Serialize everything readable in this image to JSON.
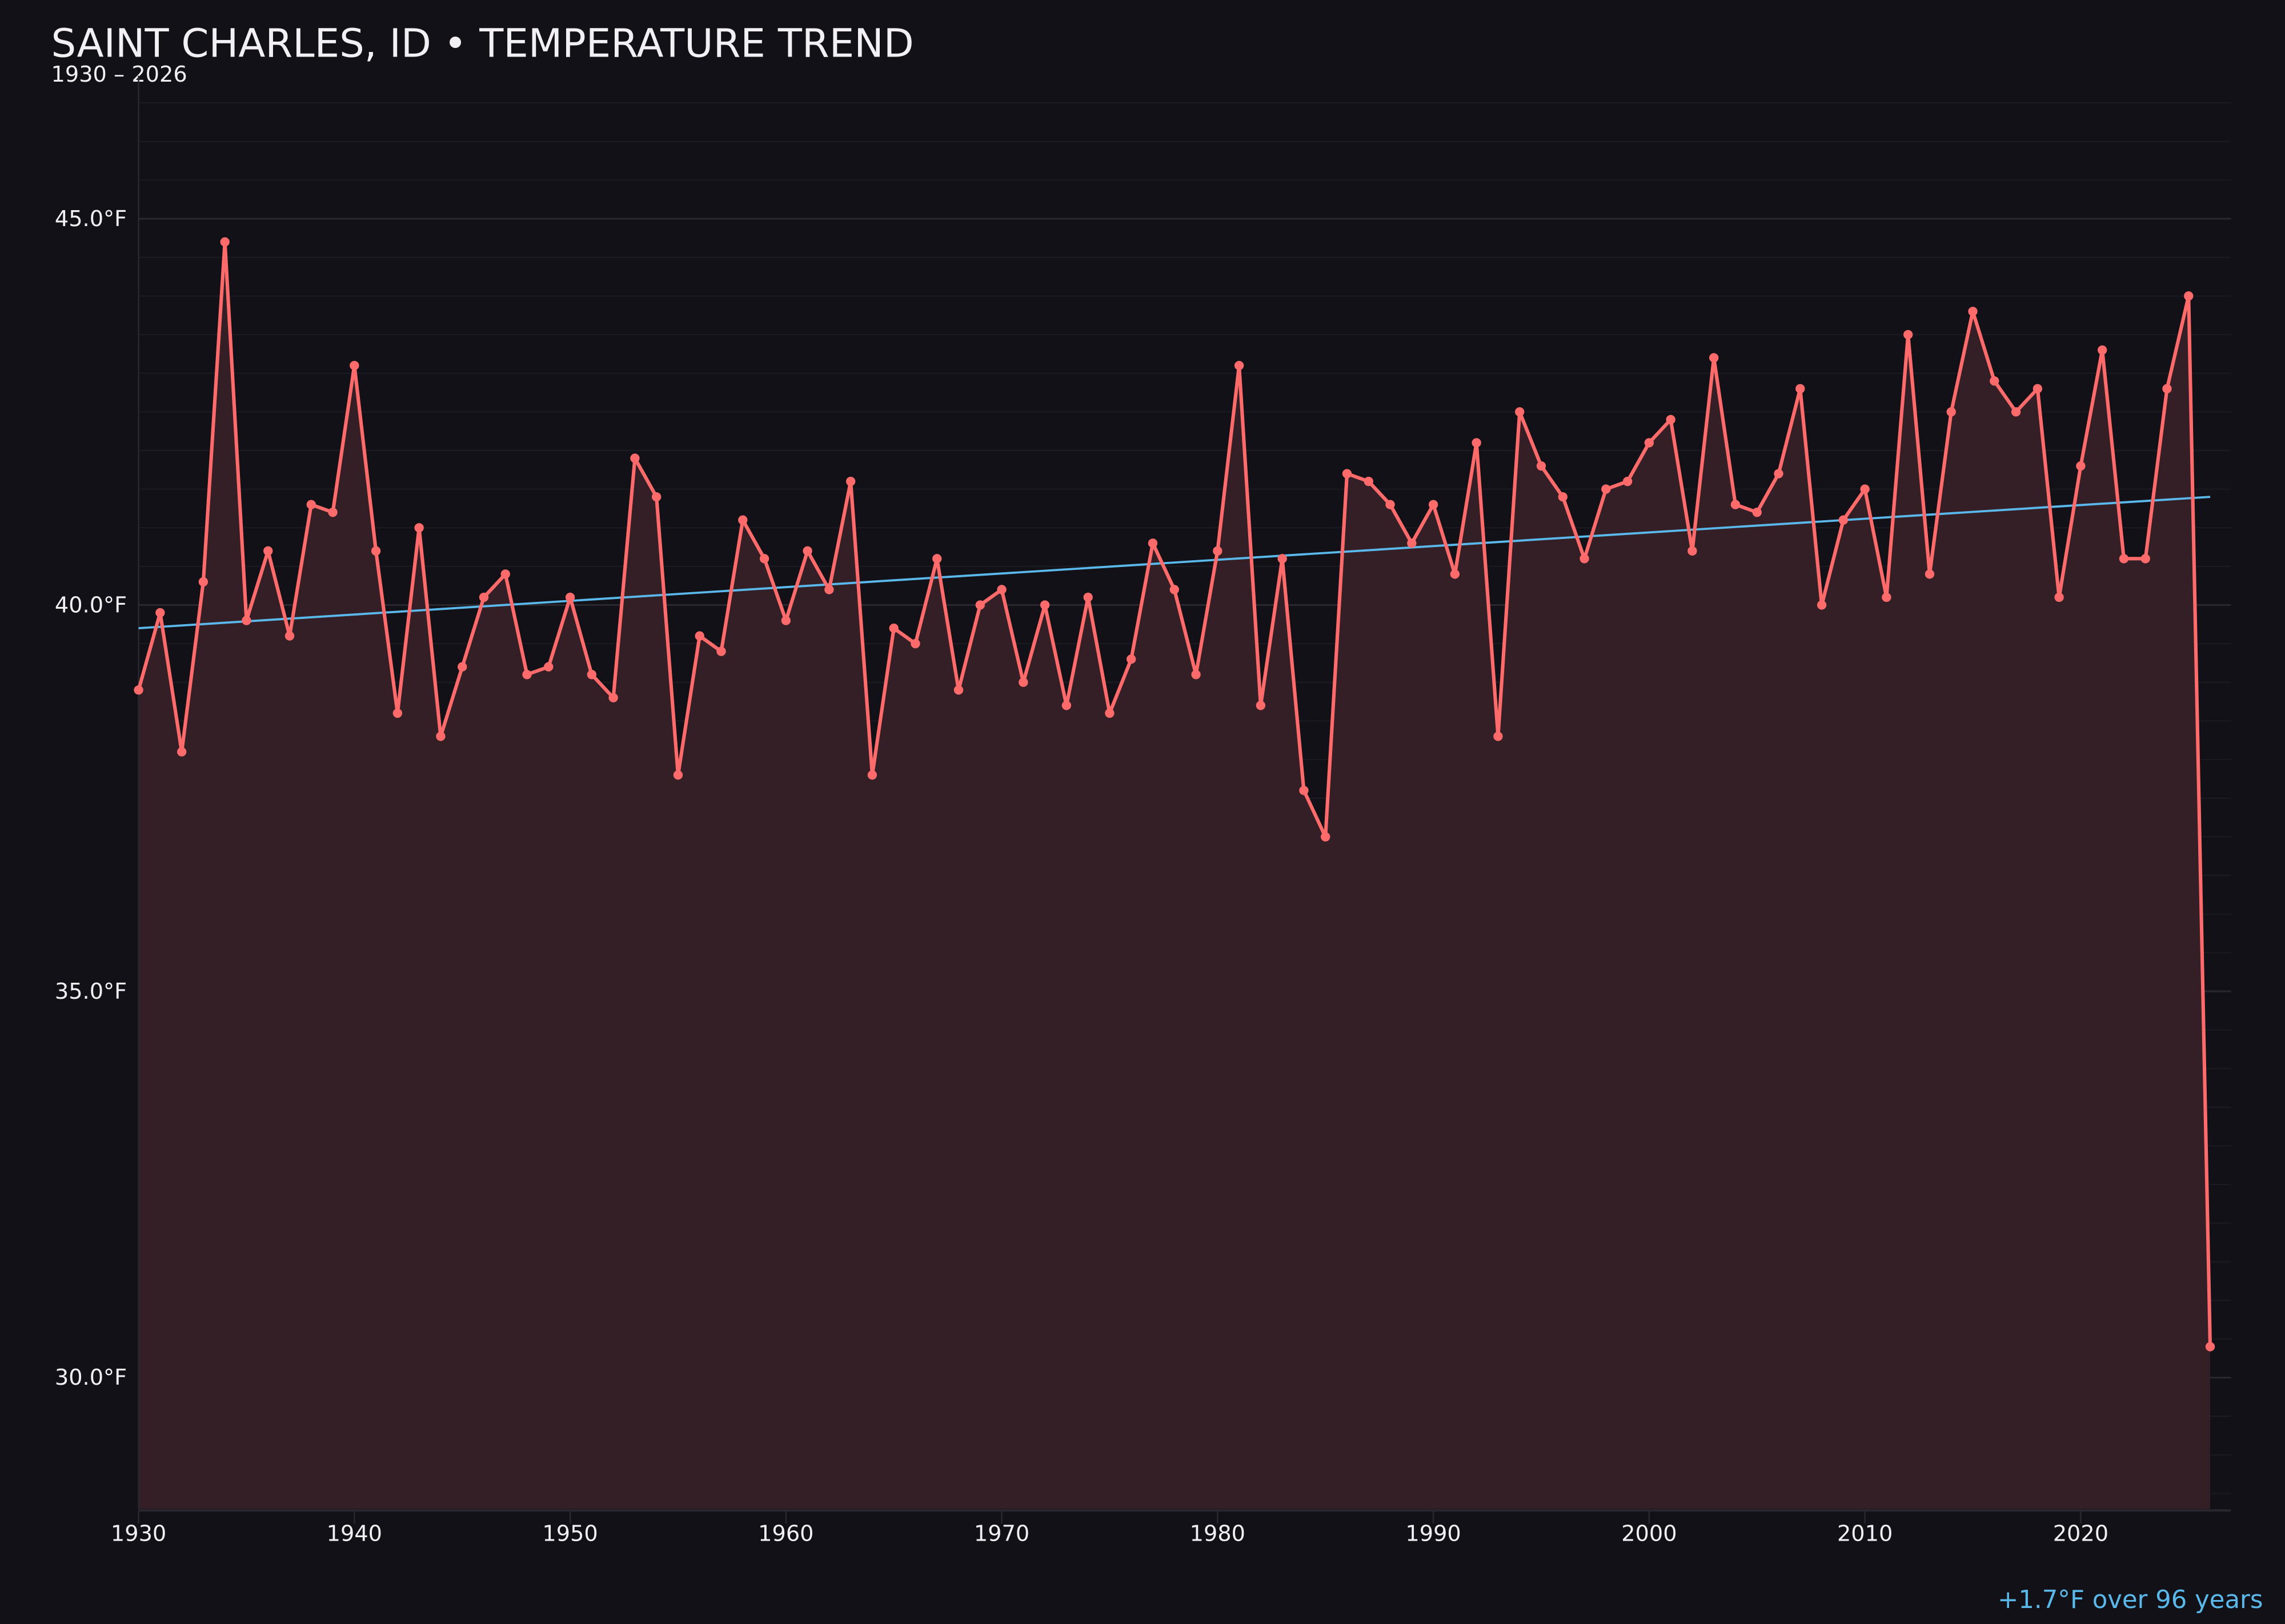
{
  "chart_data": {
    "type": "line",
    "title": "SAINT CHARLES, ID • TEMPERATURE TREND",
    "subtitle": "1930 – 2026",
    "annotation": "+1.7°F over 96 years",
    "xlabel": "",
    "ylabel": "",
    "xlim": [
      1930,
      2027
    ],
    "ylim": [
      28.3,
      46.7
    ],
    "x_ticks": [
      "1930",
      "1940",
      "1950",
      "1960",
      "1970",
      "1980",
      "1990",
      "2000",
      "2010",
      "2020"
    ],
    "y_ticks": [
      "30.0°F",
      "35.0°F",
      "40.0°F",
      "45.0°F"
    ],
    "y_tick_values": [
      30,
      35,
      40,
      45
    ],
    "grid": true,
    "minor_grid_step": 0.5,
    "colors": {
      "line": "#ff6b6b",
      "fill": "#351f26",
      "trend": "#5ab8ea",
      "background": "#121118"
    },
    "x": [
      1930,
      1931,
      1932,
      1933,
      1934,
      1935,
      1936,
      1937,
      1938,
      1939,
      1940,
      1941,
      1942,
      1943,
      1944,
      1945,
      1946,
      1947,
      1948,
      1949,
      1950,
      1951,
      1952,
      1953,
      1954,
      1955,
      1956,
      1957,
      1958,
      1959,
      1960,
      1961,
      1962,
      1963,
      1964,
      1965,
      1966,
      1967,
      1968,
      1969,
      1970,
      1971,
      1972,
      1973,
      1974,
      1975,
      1976,
      1977,
      1978,
      1979,
      1980,
      1981,
      1982,
      1983,
      1984,
      1985,
      1986,
      1987,
      1988,
      1989,
      1990,
      1991,
      1992,
      1993,
      1994,
      1995,
      1996,
      1997,
      1998,
      1999,
      2000,
      2001,
      2002,
      2003,
      2004,
      2005,
      2006,
      2007,
      2008,
      2009,
      2010,
      2011,
      2012,
      2013,
      2014,
      2015,
      2016,
      2017,
      2018,
      2019,
      2020,
      2021,
      2022,
      2023,
      2024,
      2025,
      2026
    ],
    "series": [
      {
        "values": [
          38.9,
          39.9,
          38.1,
          40.3,
          44.7,
          39.8,
          40.7,
          39.6,
          41.3,
          41.2,
          43.1,
          40.7,
          38.6,
          41.0,
          38.3,
          39.2,
          40.1,
          40.4,
          39.1,
          39.2,
          40.1,
          39.1,
          38.8,
          41.9,
          41.4,
          37.8,
          39.6,
          39.4,
          41.1,
          40.6,
          39.8,
          40.7,
          40.2,
          41.6,
          37.8,
          39.7,
          39.5,
          40.6,
          38.9,
          40.0,
          40.2,
          39.0,
          40.0,
          38.7,
          40.1,
          38.6,
          39.3,
          40.8,
          40.2,
          39.1,
          40.7,
          43.1,
          38.7,
          40.6,
          37.6,
          37.0,
          41.7,
          41.6,
          41.3,
          40.8,
          41.3,
          40.4,
          42.1,
          38.3,
          42.5,
          41.8,
          41.4,
          40.6,
          41.5,
          41.6,
          42.1,
          42.4,
          40.7,
          43.2,
          41.3,
          41.2,
          41.7,
          42.8,
          40.0,
          41.1,
          41.5,
          40.1,
          43.5,
          40.4,
          42.5,
          43.8,
          42.9,
          42.5,
          42.8,
          40.1,
          41.8,
          43.3,
          40.6,
          40.6,
          42.8,
          44.0,
          30.4
        ]
      }
    ],
    "trend": {
      "start": [
        1930,
        39.7
      ],
      "end": [
        2026,
        41.4
      ]
    }
  }
}
